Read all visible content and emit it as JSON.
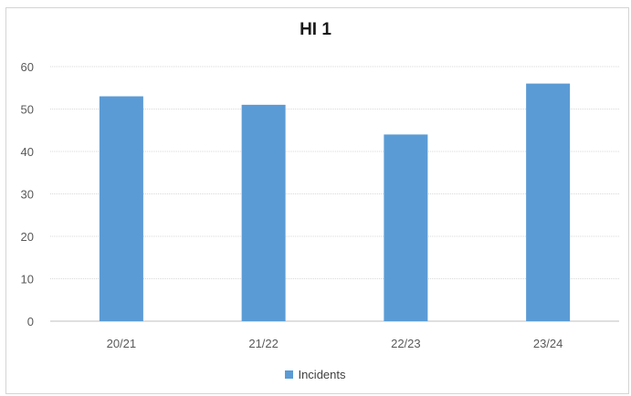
{
  "chart_data": {
    "type": "bar",
    "title": "HI 1",
    "categories": [
      "20/21",
      "21/22",
      "22/23",
      "23/24"
    ],
    "series": [
      {
        "name": "Incidents",
        "values": [
          53,
          51,
          44,
          56
        ]
      }
    ],
    "ylim": [
      0,
      60
    ],
    "yticks": [
      0,
      10,
      20,
      30,
      40,
      50,
      60
    ],
    "grid": true,
    "legend_position": "bottom",
    "color": "#5b9bd5"
  }
}
